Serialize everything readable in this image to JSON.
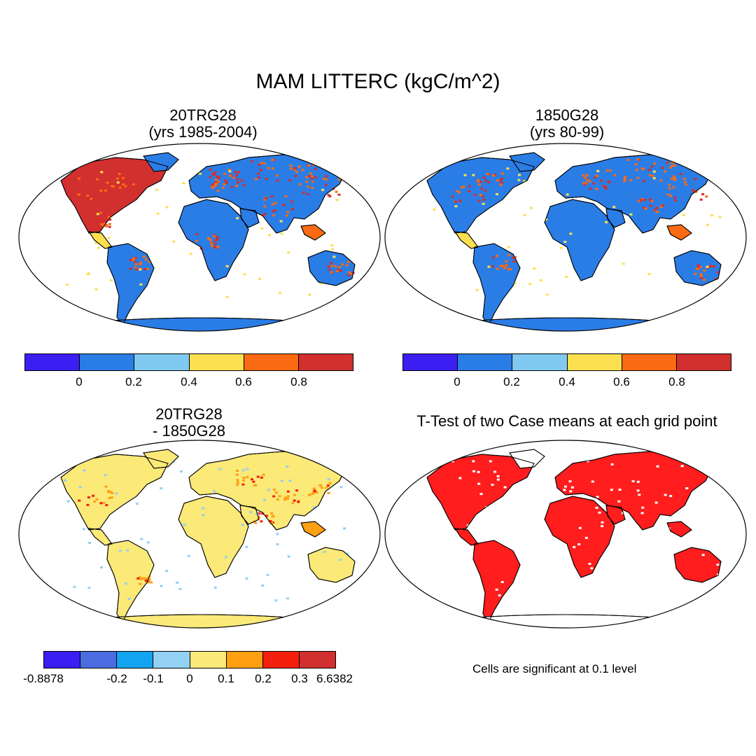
{
  "title": "MAM LITTERC (kgC/m^2)",
  "panels": [
    {
      "id": "p1",
      "title_line1": "20TRG28",
      "title_line2": "(yrs 1985-2004)",
      "scheme": "abs"
    },
    {
      "id": "p2",
      "title_line1": "1850G28",
      "title_line2": "(yrs 80-99)",
      "scheme": "abs"
    },
    {
      "id": "p3",
      "title_line1": "20TRG28",
      "title_line2": "- 1850G28",
      "scheme": "diff"
    },
    {
      "id": "p4",
      "title_line1": "T-Test of two Case means at each grid point",
      "scheme": "ttest"
    }
  ],
  "colorbar_abs": {
    "colors": [
      "#3b1ef2",
      "#2b7de6",
      "#80c9f0",
      "#fde04f",
      "#fa6a12",
      "#d22f2f"
    ],
    "labels": [
      "0",
      "0.2",
      "0.4",
      "0.6",
      "0.8"
    ]
  },
  "colorbar_diff": {
    "colors": [
      "#3b1ef2",
      "#4a6ce0",
      "#12a4f0",
      "#92d1f3",
      "#fbe978",
      "#ff9f12",
      "#f3200d",
      "#d22f2f"
    ],
    "labels": [
      "-0.8878",
      "-0.2",
      "-0.1",
      "0",
      "0.1",
      "0.2",
      "0.3",
      "6.6382"
    ]
  },
  "ttest_note": "Cells are significant at 0.1 level",
  "ttest_color": "#ff1d1d"
}
